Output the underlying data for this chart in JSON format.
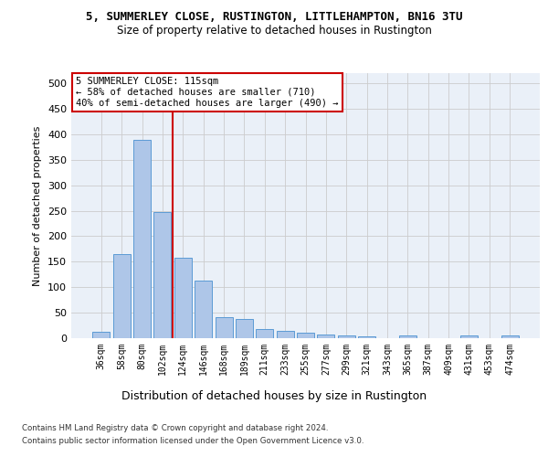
{
  "title": "5, SUMMERLEY CLOSE, RUSTINGTON, LITTLEHAMPTON, BN16 3TU",
  "subtitle": "Size of property relative to detached houses in Rustington",
  "xlabel": "Distribution of detached houses by size in Rustington",
  "ylabel": "Number of detached properties",
  "bar_labels": [
    "36sqm",
    "58sqm",
    "80sqm",
    "102sqm",
    "124sqm",
    "146sqm",
    "168sqm",
    "189sqm",
    "211sqm",
    "233sqm",
    "255sqm",
    "277sqm",
    "299sqm",
    "321sqm",
    "343sqm",
    "365sqm",
    "387sqm",
    "409sqm",
    "431sqm",
    "453sqm",
    "474sqm"
  ],
  "bar_values": [
    12,
    165,
    390,
    248,
    157,
    113,
    42,
    38,
    18,
    14,
    10,
    8,
    6,
    4,
    0,
    5,
    0,
    0,
    5,
    0,
    5
  ],
  "bar_color": "#aec6e8",
  "bar_edgecolor": "#5b9bd5",
  "vline_x": 3.5,
  "vline_color": "#cc0000",
  "annotation_text": "5 SUMMERLEY CLOSE: 115sqm\n← 58% of detached houses are smaller (710)\n40% of semi-detached houses are larger (490) →",
  "annotation_box_color": "#ffffff",
  "annotation_box_edgecolor": "#cc0000",
  "ylim": [
    0,
    520
  ],
  "yticks": [
    0,
    50,
    100,
    150,
    200,
    250,
    300,
    350,
    400,
    450,
    500
  ],
  "footnote1": "Contains HM Land Registry data © Crown copyright and database right 2024.",
  "footnote2": "Contains public sector information licensed under the Open Government Licence v3.0.",
  "bg_color": "#eaf0f8",
  "plot_bg_color": "#eaf0f8"
}
